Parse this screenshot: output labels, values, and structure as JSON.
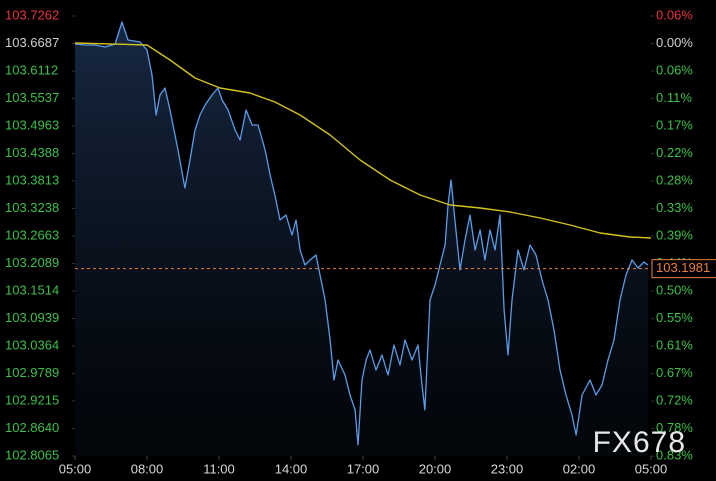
{
  "chart_data": {
    "type": "line",
    "watermark": "FX678",
    "xlim": [
      0,
      24
    ],
    "xticks": [
      {
        "value": 0,
        "label": "05:00"
      },
      {
        "value": 3,
        "label": "08:00"
      },
      {
        "value": 6,
        "label": "11:00"
      },
      {
        "value": 9,
        "label": "14:00"
      },
      {
        "value": 12,
        "label": "17:00"
      },
      {
        "value": 15,
        "label": "20:00"
      },
      {
        "value": 18,
        "label": "23:00"
      },
      {
        "value": 21,
        "label": "02:00"
      },
      {
        "value": 24,
        "label": "05:00"
      }
    ],
    "ylim": [
      102.8065,
      103.7262
    ],
    "yticks": [
      103.7262,
      103.6687,
      103.6112,
      103.5537,
      103.4963,
      103.4388,
      103.3813,
      103.3238,
      103.2663,
      103.2089,
      103.1514,
      103.0939,
      103.0364,
      102.9789,
      102.9215,
      {
        "value": 102.864,
        "label": "102.8640"
      },
      102.8065
    ],
    "y2lim": [
      -0.8317,
      0.0555
    ],
    "y2ticks": [
      {
        "value": 0.0555,
        "label": "0.06%"
      },
      {
        "value": 0,
        "label": "0.00%"
      },
      {
        "value": -0.0555,
        "label": "0.06%"
      },
      {
        "value": -0.1109,
        "label": "0.11%"
      },
      {
        "value": -0.1664,
        "label": "0.17%"
      },
      {
        "value": -0.2218,
        "label": "0.22%"
      },
      {
        "value": -0.2773,
        "label": "0.28%"
      },
      {
        "value": -0.3328,
        "label": "0.33%"
      },
      {
        "value": -0.3882,
        "label": "0.39%"
      },
      {
        "value": -0.4437,
        "label": "0.44%"
      },
      {
        "value": -0.4991,
        "label": "0.50%"
      },
      {
        "value": -0.5546,
        "label": "0.55%"
      },
      {
        "value": -0.61,
        "label": "0.61%"
      },
      {
        "value": -0.6655,
        "label": "0.67%"
      },
      {
        "value": -0.721,
        "label": "0.72%"
      },
      {
        "value": -0.7764,
        "label": "0.78%"
      },
      {
        "value": -0.8319,
        "label": "0.83%"
      }
    ],
    "colors": {
      "up": "#e8323c",
      "flat": "#d0d0d0",
      "down": "#3dbf4a"
    },
    "last_value": 103.1981,
    "last_color": "#e8813a",
    "series": [
      {
        "color": "#5b9be8",
        "area": true,
        "x": [
          0,
          0.42,
          0.83,
          1.25,
          1.67,
          1.96,
          2.21,
          2.71,
          3,
          3.21,
          3.38,
          3.54,
          3.75,
          3.96,
          4.29,
          4.58,
          4.79,
          5,
          5.21,
          5.42,
          5.71,
          5.96,
          6.13,
          6.38,
          6.67,
          6.88,
          7.13,
          7.38,
          7.63,
          7.92,
          8.13,
          8.33,
          8.54,
          8.79,
          9.04,
          9.21,
          9.38,
          9.58,
          9.79,
          10.04,
          10.21,
          10.42,
          10.63,
          10.79,
          10.96,
          11.25,
          11.46,
          11.67,
          11.79,
          11.96,
          12.13,
          12.29,
          12.54,
          12.79,
          13.04,
          13.29,
          13.54,
          13.75,
          14.04,
          14.29,
          14.46,
          14.58,
          14.79,
          15,
          15.21,
          15.42,
          15.54,
          15.67,
          15.83,
          16.04,
          16.25,
          16.46,
          16.67,
          16.88,
          17.08,
          17.29,
          17.5,
          17.71,
          17.88,
          18.04,
          18.21,
          18.46,
          18.71,
          18.96,
          19.21,
          19.46,
          19.71,
          19.96,
          20.21,
          20.46,
          20.71,
          20.88,
          21.13,
          21.46,
          21.71,
          21.96,
          22.21,
          22.46,
          22.71,
          22.96,
          23.21,
          23.46,
          23.71,
          23.88
        ],
        "values": [
          103.6677,
          103.6656,
          103.6656,
          103.6614,
          103.6677,
          103.7137,
          103.676,
          103.6719,
          103.6551,
          103.6029,
          103.5193,
          103.5611,
          103.5757,
          103.5297,
          103.4461,
          103.3667,
          103.4252,
          103.4879,
          103.5193,
          103.5402,
          103.5611,
          103.5757,
          103.5506,
          103.5297,
          103.4879,
          103.467,
          103.5297,
          103.4984,
          103.4984,
          103.4461,
          103.3939,
          103.3521,
          103.2998,
          103.3103,
          103.2684,
          103.2998,
          103.2371,
          103.2057,
          103.2162,
          103.2266,
          103.1848,
          103.1326,
          103.049,
          102.9654,
          103.0072,
          102.9758,
          102.934,
          102.9027,
          102.8295,
          102.9654,
          103.0072,
          103.0281,
          102.9863,
          103.0176,
          102.9758,
          103.0385,
          102.9967,
          103.049,
          103.0072,
          103.0385,
          102.9549,
          102.9027,
          103.1326,
          103.1639,
          103.2057,
          103.2475,
          103.3312,
          103.3834,
          103.2998,
          103.1953,
          103.258,
          103.3103,
          103.2371,
          103.2789,
          103.2162,
          103.2789,
          103.2371,
          103.3103,
          103.1117,
          103.0176,
          103.1326,
          103.2371,
          103.1953,
          103.2475,
          103.2266,
          103.1744,
          103.1326,
          103.0699,
          102.9863,
          102.934,
          102.8922,
          102.8504,
          102.934,
          102.9654,
          102.934,
          102.9549,
          103.0072,
          103.049,
          103.1326,
          103.1848,
          103.2162,
          103.1995,
          103.212,
          103.2057
        ]
      },
      {
        "color": "#d4c21c",
        "area": false,
        "x": [
          0,
          3,
          3.96,
          5,
          6.04,
          7.29,
          8.33,
          9.38,
          10.63,
          11.88,
          13.13,
          14.38,
          15.63,
          16.88,
          18.13,
          19.38,
          20.63,
          21.88,
          23.13,
          24
        ],
        "values": [
          103.6698,
          103.6656,
          103.6342,
          103.5966,
          103.5757,
          103.5653,
          103.5464,
          103.5193,
          103.4775,
          103.4252,
          103.3834,
          103.3521,
          103.3312,
          103.3249,
          103.3165,
          103.304,
          103.2894,
          103.2726,
          103.2643,
          103.2622
        ]
      }
    ]
  }
}
